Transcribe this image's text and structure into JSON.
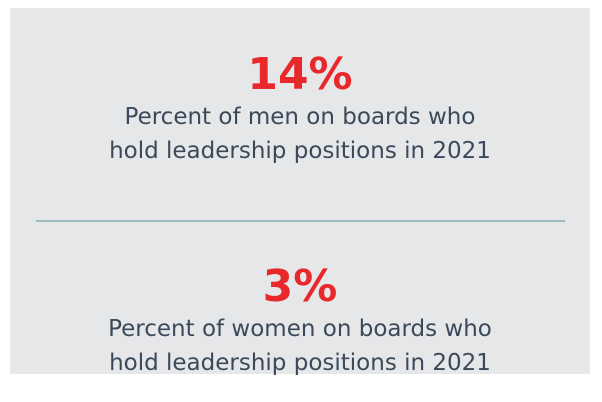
{
  "stats": [
    {
      "value": "14%",
      "lines": [
        "Percent of men on boards who",
        "hold leadership positions in 2021"
      ]
    },
    {
      "value": "3%",
      "lines": [
        "Percent of women on boards who",
        "hold leadership positions in 2021"
      ]
    }
  ]
}
